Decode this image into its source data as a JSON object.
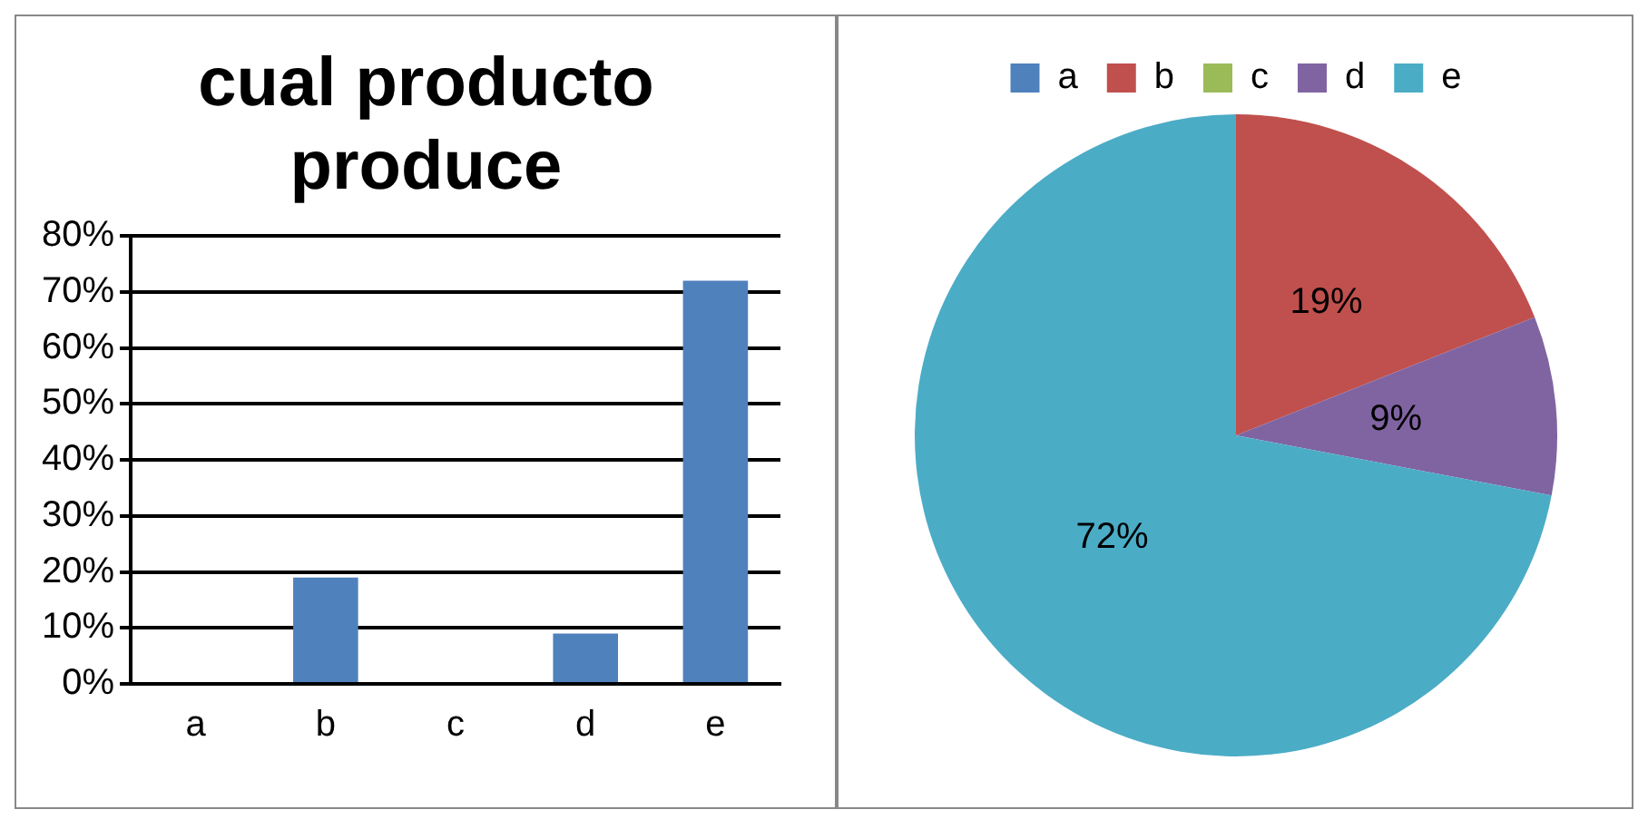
{
  "chart_data": [
    {
      "type": "bar",
      "title": "cual producto produce",
      "categories": [
        "a",
        "b",
        "c",
        "d",
        "e"
      ],
      "values": [
        0,
        19,
        0,
        9,
        72
      ],
      "color": "#4f81bd",
      "ylim": [
        0,
        80
      ],
      "yticks": [
        {
          "value": 0,
          "label": "0%"
        },
        {
          "value": 10,
          "label": "10%"
        },
        {
          "value": 20,
          "label": "20%"
        },
        {
          "value": 30,
          "label": "30%"
        },
        {
          "value": 40,
          "label": "40%"
        },
        {
          "value": 50,
          "label": "50%"
        },
        {
          "value": 60,
          "label": "60%"
        },
        {
          "value": 70,
          "label": "70%"
        },
        {
          "value": 80,
          "label": "80%"
        }
      ],
      "grid": "y",
      "legend": false
    },
    {
      "type": "pie",
      "categories": [
        "a",
        "b",
        "c",
        "d",
        "e"
      ],
      "values": [
        0,
        19,
        0,
        9,
        72
      ],
      "colors": [
        "#4f81bd",
        "#c0504d",
        "#9bbb59",
        "#8064a2",
        "#4bacc6"
      ],
      "value_labels": [
        null,
        "19%",
        null,
        "9%",
        "72%"
      ],
      "legend": "top"
    }
  ]
}
